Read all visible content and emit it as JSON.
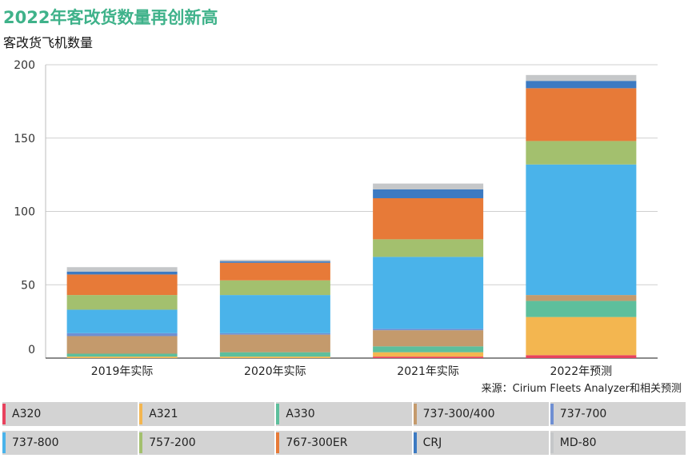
{
  "title": "2022年客改货数量再创新高",
  "subtitle": "客改货飞机数量",
  "source": "来源：Cirium Fleets Analyzer和相关预测",
  "chart_data": {
    "type": "bar",
    "stacked": true,
    "categories": [
      "2019年实际",
      "2020年实际",
      "2021年实际",
      "2022年预测"
    ],
    "ylim": [
      0,
      200
    ],
    "yticks": [
      0,
      50,
      100,
      150,
      200
    ],
    "grid": true,
    "legend_position": "bottom",
    "series": [
      {
        "name": "A320",
        "color": "#e8425d",
        "values": [
          0,
          0,
          1,
          2
        ]
      },
      {
        "name": "A321",
        "color": "#f3b650",
        "values": [
          1,
          1,
          3,
          26
        ]
      },
      {
        "name": "A330",
        "color": "#5dbf9c",
        "values": [
          2,
          3,
          4,
          11
        ]
      },
      {
        "name": "737-300/400",
        "color": "#c49a6c",
        "values": [
          12,
          12,
          11,
          4
        ]
      },
      {
        "name": "737-700",
        "color": "#6f8fd2",
        "values": [
          2,
          1,
          1,
          0
        ]
      },
      {
        "name": "737-800",
        "color": "#4ab3ea",
        "values": [
          16,
          26,
          49,
          89
        ]
      },
      {
        "name": "757-200",
        "color": "#a3c06e",
        "values": [
          10,
          10,
          12,
          16
        ]
      },
      {
        "name": "767-300ER",
        "color": "#e77a38",
        "values": [
          14,
          12,
          28,
          36
        ]
      },
      {
        "name": "CRJ",
        "color": "#3c7ac2",
        "values": [
          2,
          1,
          6,
          5
        ]
      },
      {
        "name": "MD-80",
        "color": "#c5c7c9",
        "values": [
          3,
          1,
          4,
          4
        ]
      }
    ]
  }
}
